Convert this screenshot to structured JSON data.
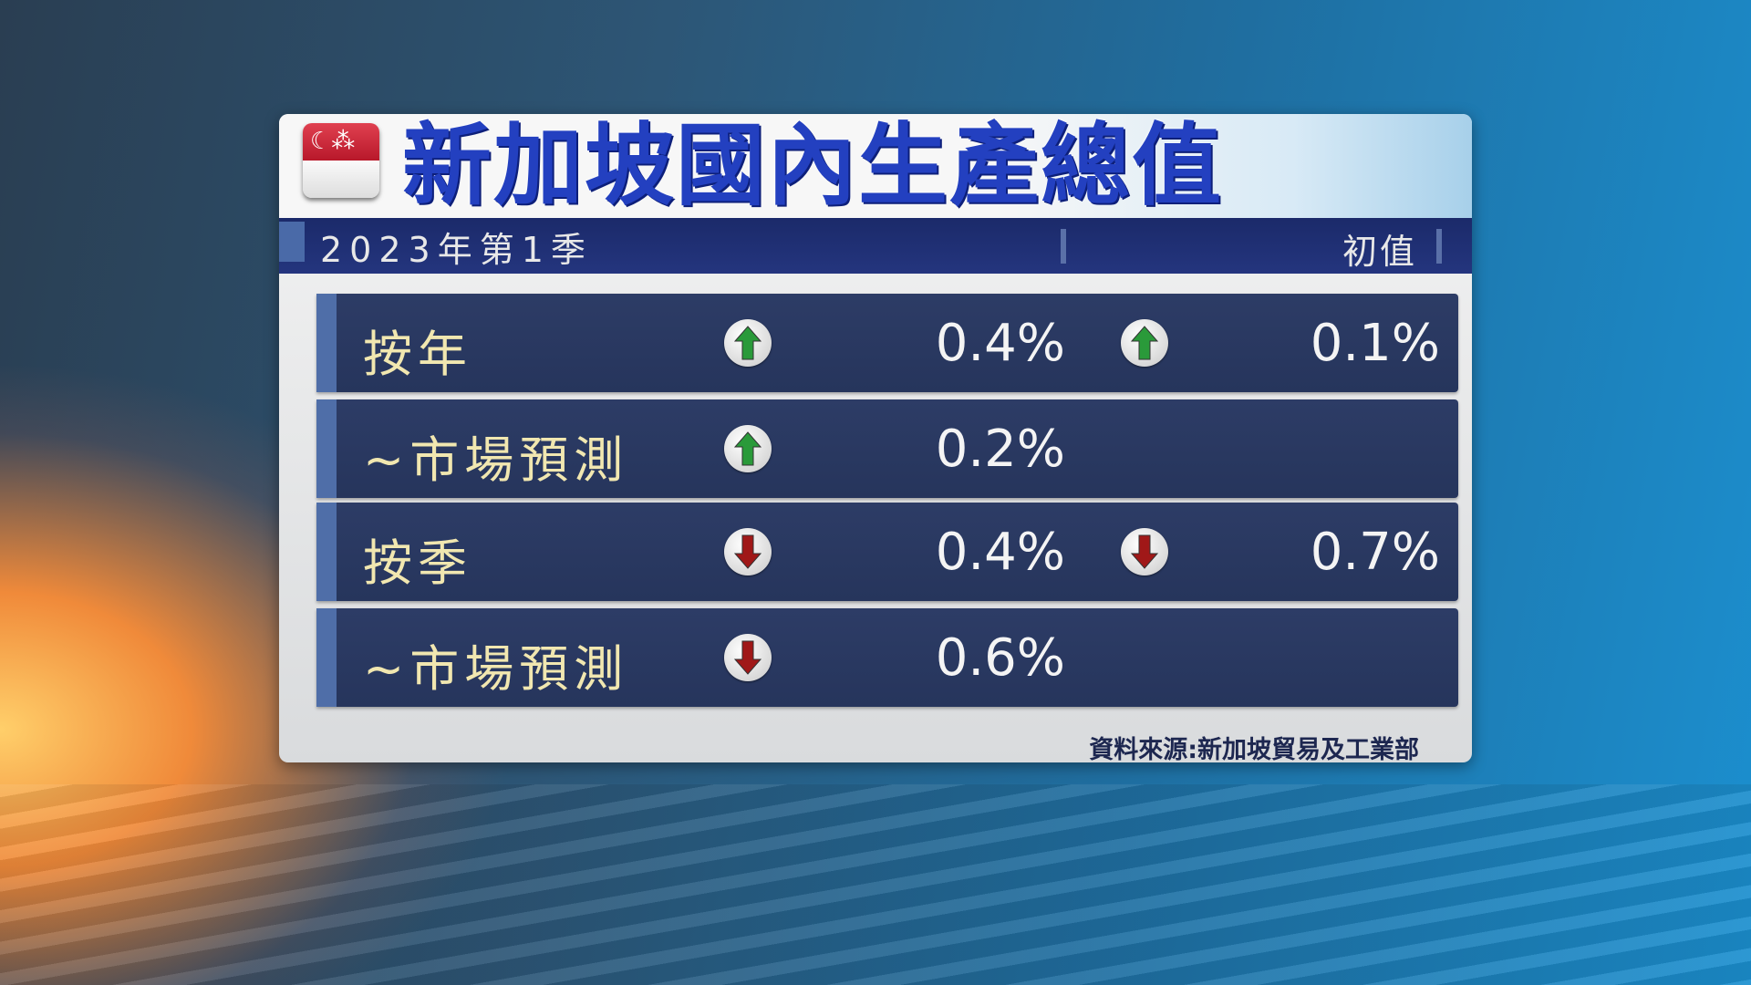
{
  "title": "新加坡國內生產總值",
  "flag_icon": "singapore-flag-icon",
  "period": "2023年第1季",
  "column_header": "初值",
  "colors": {
    "title": "#2340c0",
    "row_bg": "#2b3a63",
    "label": "#f1e7b0",
    "up": "#2a9a3a",
    "down": "#a01818"
  },
  "rows": [
    {
      "label": "按年",
      "value1": "0.4%",
      "dir1": "up",
      "value2": "0.1%",
      "dir2": "up"
    },
    {
      "label": "~市場預測",
      "value1": "0.2%",
      "dir1": "up"
    },
    {
      "label": "按季",
      "value1": "0.4%",
      "dir1": "down",
      "value2": "0.7%",
      "dir2": "down"
    },
    {
      "label": "~市場預測",
      "value1": "0.6%",
      "dir1": "down"
    }
  ],
  "source": "資料來源:新加坡貿易及工業部"
}
